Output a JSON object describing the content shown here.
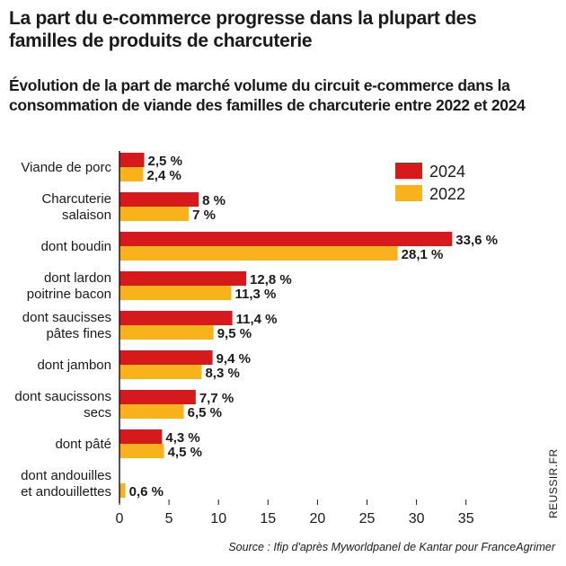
{
  "title": "La part du e-commerce progresse dans la plupart des familles de produits de charcuterie",
  "subtitle": "Évolution de la part de marché volume du circuit e-commerce dans la consommation de viande des familles de charcuterie entre 2022 et 2024",
  "source": "Source : Ifip d'après Myworldpanel de Kantar pour FranceAgrimer",
  "credit": "REUSSIR.FR",
  "colors": {
    "2024": "#d7191c",
    "2022": "#f9b21b"
  },
  "chart_data": {
    "type": "bar",
    "orientation": "horizontal",
    "categories": [
      [
        "Viande de porc"
      ],
      [
        "Charcuterie",
        "salaison"
      ],
      [
        "dont boudin"
      ],
      [
        "dont lardon",
        "poitrine bacon"
      ],
      [
        "dont saucisses",
        "pâtes fines"
      ],
      [
        "dont jambon"
      ],
      [
        "dont saucissons",
        "secs"
      ],
      [
        "dont pâté"
      ],
      [
        "dont andouilles",
        "et andouillettes"
      ]
    ],
    "series": [
      {
        "name": "2024",
        "values": [
          2.5,
          8,
          33.6,
          12.8,
          11.4,
          9.4,
          7.7,
          4.3,
          null
        ],
        "labels": [
          "2,5 %",
          "8 %",
          "33,6 %",
          "12,8 %",
          "11,4 %",
          "9,4 %",
          "7,7 %",
          "4,3 %",
          ""
        ]
      },
      {
        "name": "2022",
        "values": [
          2.4,
          7,
          28.1,
          11.3,
          9.5,
          8.3,
          6.5,
          4.5,
          0.6
        ],
        "labels": [
          "2,4 %",
          "7 %",
          "28,1 %",
          "11,3 %",
          "9,5 %",
          "8,3 %",
          "6,5 %",
          "4,5 %",
          "0,6 %"
        ]
      }
    ],
    "xlim": [
      0,
      35
    ],
    "xticks": [
      "0",
      "5",
      "10",
      "15",
      "20",
      "25",
      "30",
      "35"
    ],
    "grid": false,
    "legend": "top-right"
  }
}
